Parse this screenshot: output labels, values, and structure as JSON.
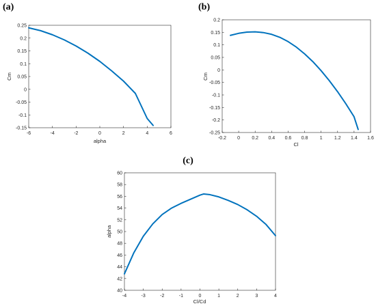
{
  "chart_data": [
    {
      "type": "line",
      "panel_label": "(a)",
      "xlabel": "alpha",
      "ylabel": "Cm",
      "xlim": [
        -6,
        6
      ],
      "ylim": [
        -0.15,
        0.25
      ],
      "xticks": [
        -6,
        -4,
        -2,
        0,
        2,
        4,
        6
      ],
      "xtick_labels": [
        "-6",
        "-4",
        "-2",
        "0",
        "2",
        "4",
        "6"
      ],
      "yticks": [
        -0.15,
        -0.1,
        -0.05,
        0,
        0.05,
        0.1,
        0.15,
        0.2,
        0.25
      ],
      "ytick_labels": [
        "-0.15",
        "-0.1",
        "-0.05",
        "0",
        "0.05",
        "0.1",
        "0.15",
        "0.2",
        "0.25"
      ],
      "grid": false,
      "color": "#0072BD",
      "series": [
        {
          "x": [
            -6,
            -5,
            -4,
            -3,
            -2,
            -1,
            0,
            1,
            2,
            3,
            4,
            4.5
          ],
          "y": [
            0.24,
            0.229,
            0.213,
            0.193,
            0.169,
            0.141,
            0.109,
            0.072,
            0.032,
            -0.016,
            -0.114,
            -0.141
          ]
        }
      ]
    },
    {
      "type": "line",
      "panel_label": "(b)",
      "xlabel": "Cl",
      "ylabel": "Cm",
      "xlim": [
        -0.2,
        1.6
      ],
      "ylim": [
        -0.25,
        0.2
      ],
      "xticks": [
        -0.2,
        0,
        0.2,
        0.4,
        0.6,
        0.8,
        1,
        1.2,
        1.4,
        1.6
      ],
      "xtick_labels": [
        "-0.2",
        "0",
        "0.2",
        "0.4",
        "0.6",
        "0.8",
        "1",
        "1.2",
        "1.4",
        "1.6"
      ],
      "yticks": [
        -0.25,
        -0.2,
        -0.15,
        -0.1,
        -0.05,
        0,
        0.05,
        0.1,
        0.15,
        0.2
      ],
      "ytick_labels": [
        "-0.25",
        "-0.2",
        "-0.15",
        "-0.1",
        "-0.05",
        "0",
        "0.05",
        "0.1",
        "0.15",
        "0.2"
      ],
      "grid": false,
      "color": "#0072BD",
      "series": [
        {
          "x": [
            -0.1,
            0,
            0.1,
            0.2,
            0.3,
            0.4,
            0.5,
            0.6,
            0.7,
            0.8,
            0.9,
            1.0,
            1.1,
            1.2,
            1.3,
            1.4,
            1.45
          ],
          "y": [
            0.138,
            0.146,
            0.151,
            0.152,
            0.149,
            0.142,
            0.13,
            0.113,
            0.091,
            0.064,
            0.033,
            -0.003,
            -0.043,
            -0.087,
            -0.135,
            -0.187,
            -0.238
          ]
        }
      ]
    },
    {
      "type": "line",
      "panel_label": "(c)",
      "xlabel": "Cl/Cd",
      "ylabel": "alpha",
      "xlim": [
        -4,
        4
      ],
      "ylim": [
        40,
        60
      ],
      "xticks": [
        -4,
        -3,
        -2,
        -1,
        0,
        1,
        2,
        3,
        4
      ],
      "xtick_labels": [
        "-4",
        "-3",
        "-2",
        "-1",
        "0",
        "1",
        "2",
        "3",
        "4"
      ],
      "yticks": [
        40,
        42,
        44,
        46,
        48,
        50,
        52,
        54,
        56,
        58,
        60
      ],
      "ytick_labels": [
        "40",
        "42",
        "44",
        "46",
        "48",
        "50",
        "52",
        "54",
        "56",
        "58",
        "60"
      ],
      "grid": false,
      "color": "#0072BD",
      "series": [
        {
          "x": [
            -4,
            -3.5,
            -3,
            -2.5,
            -2,
            -1.5,
            -1,
            -0.5,
            0,
            0.2,
            0.5,
            1,
            1.5,
            2,
            2.5,
            3,
            3.5,
            4
          ],
          "y": [
            42.8,
            46.4,
            49.2,
            51.3,
            52.9,
            54.0,
            54.8,
            55.5,
            56.2,
            56.4,
            56.3,
            55.9,
            55.3,
            54.6,
            53.7,
            52.6,
            51.2,
            49.3
          ]
        }
      ]
    }
  ]
}
